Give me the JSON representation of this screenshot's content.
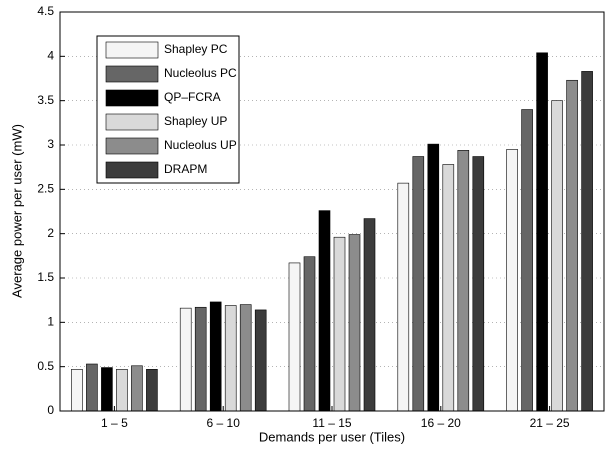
{
  "chart_data": {
    "type": "bar",
    "x_label": "Demands per user (Tiles)",
    "y_label": "Average power per user (mW)",
    "categories": [
      "1 – 5",
      "6 – 10",
      "11 – 15",
      "16 – 20",
      "21 – 25"
    ],
    "series": [
      {
        "name": "Shapley PC",
        "color": "#f5f5f5",
        "values": [
          0.47,
          1.16,
          1.67,
          2.57,
          2.95
        ]
      },
      {
        "name": "Nucleolus PC",
        "color": "#666666",
        "values": [
          0.53,
          1.17,
          1.74,
          2.87,
          3.4
        ]
      },
      {
        "name": "QP–FCRA",
        "color": "#000000",
        "values": [
          0.49,
          1.23,
          2.26,
          3.01,
          4.04
        ]
      },
      {
        "name": "Shapley UP",
        "color": "#d9d9d9",
        "values": [
          0.47,
          1.19,
          1.96,
          2.78,
          3.5
        ]
      },
      {
        "name": "Nucleolus UP",
        "color": "#8c8c8c",
        "values": [
          0.51,
          1.2,
          1.99,
          2.94,
          3.73
        ]
      },
      {
        "name": "DRAPM",
        "color": "#3c3c3c",
        "values": [
          0.47,
          1.14,
          2.17,
          2.87,
          3.83
        ]
      }
    ],
    "ylim": [
      0,
      4.5
    ],
    "yticks": [
      0,
      0.5,
      1,
      1.5,
      2,
      2.5,
      3,
      3.5,
      4,
      4.5
    ],
    "grid": true,
    "legend": "upper-left"
  }
}
